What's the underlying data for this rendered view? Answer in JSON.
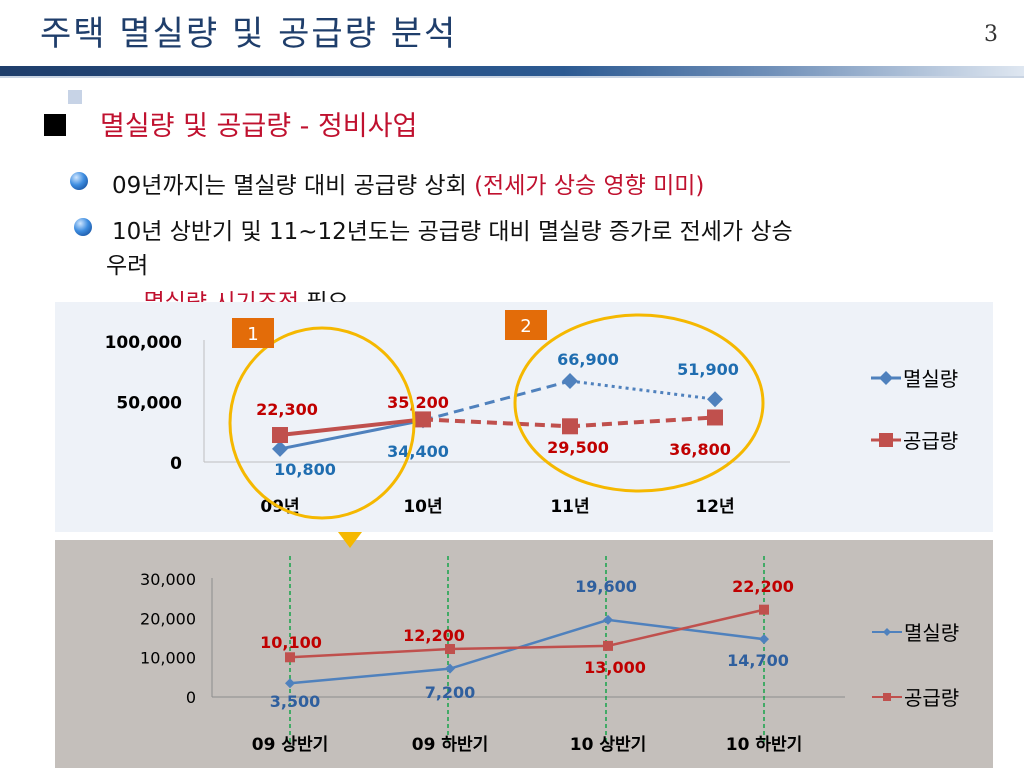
{
  "slide": {
    "title": "주택 멸실량 및 공급량 분석",
    "page_number": "3",
    "heading": "멸실량 및 공급량 - 정비사업",
    "bullets": [
      {
        "text": "09년까지는 멸실량 대비 공급량 상회 ",
        "highlight": "(전세가 상승 영향 미미)"
      },
      {
        "text": "10년 상반기 및 11~12년도는 공급량 대비 멸실량 증가로 전세가 상승",
        "text_line2": "우려"
      }
    ],
    "sub_bullet": {
      "red": "- 멸실량 시기조정",
      "black": " 필요"
    },
    "colors": {
      "blue": "#4f81bd",
      "red": "#c0504d",
      "circle": "#f5b800",
      "badge": "#e36c09"
    }
  },
  "chart_data": [
    {
      "type": "line",
      "categories": [
        "09년",
        "10년",
        "11년",
        "12년"
      ],
      "ylim": [
        0,
        100000
      ],
      "yticks": [
        "0",
        "50,000",
        "100,000"
      ],
      "series": [
        {
          "name": "멸실량",
          "color": "#4f81bd",
          "values": [
            10800,
            34400,
            66900,
            51900
          ],
          "labels": [
            "10,800",
            "34,400",
            "66,900",
            "51,900"
          ]
        },
        {
          "name": "공급량",
          "color": "#c0504d",
          "values": [
            22300,
            35200,
            29500,
            36800
          ],
          "labels": [
            "22,300",
            "35,200",
            "29,500",
            "36,800"
          ]
        }
      ],
      "annotations": [
        "1",
        "2"
      ],
      "legend": "right"
    },
    {
      "type": "line",
      "categories": [
        "09 상반기",
        "09 하반기",
        "10 상반기",
        "10 하반기"
      ],
      "ylim": [
        0,
        30000
      ],
      "yticks": [
        "0",
        "10,000",
        "20,000",
        "30,000"
      ],
      "series": [
        {
          "name": "멸실량",
          "color": "#4f81bd",
          "values": [
            3500,
            7200,
            19600,
            14700
          ],
          "labels": [
            "3,500",
            "7,200",
            "19,600",
            "14,700"
          ]
        },
        {
          "name": "공급량",
          "color": "#c0504d",
          "values": [
            10100,
            12200,
            13000,
            22200
          ],
          "labels": [
            "10,100",
            "12,200",
            "13,000",
            "22,200"
          ]
        }
      ],
      "legend": "right"
    }
  ]
}
